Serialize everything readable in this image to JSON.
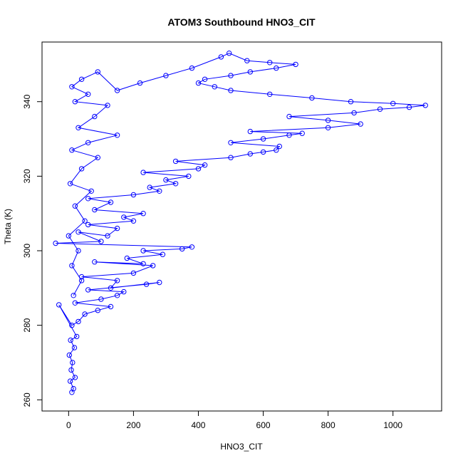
{
  "chart_data": {
    "type": "scatter",
    "title": "ATOM3 Southbound HNO3_CIT",
    "xlabel": "HNO3_CIT",
    "ylabel": "Theta (K)",
    "xlim": [
      -82,
      1150
    ],
    "ylim": [
      257,
      356
    ],
    "xticks": [
      0,
      200,
      400,
      600,
      800,
      1000
    ],
    "yticks": [
      260,
      280,
      300,
      320,
      340
    ],
    "grid": false,
    "legend": "none",
    "colors": {
      "series": "#0000ff",
      "frame": "#000000"
    },
    "series": [
      {
        "marker": "open-circle",
        "connected": true,
        "points": [
          [
            10,
            262
          ],
          [
            15,
            263
          ],
          [
            5,
            265
          ],
          [
            20,
            266
          ],
          [
            8,
            268
          ],
          [
            12,
            270
          ],
          [
            2,
            272
          ],
          [
            18,
            274
          ],
          [
            6,
            276
          ],
          [
            25,
            277
          ],
          [
            -30,
            285.5
          ],
          [
            10,
            280
          ],
          [
            30,
            281
          ],
          [
            50,
            283
          ],
          [
            90,
            284
          ],
          [
            130,
            285
          ],
          [
            20,
            286
          ],
          [
            100,
            287
          ],
          [
            150,
            288
          ],
          [
            170,
            289
          ],
          [
            60,
            289.5
          ],
          [
            240,
            291
          ],
          [
            280,
            291.5
          ],
          [
            130,
            290
          ],
          [
            150,
            292
          ],
          [
            40,
            293
          ],
          [
            200,
            294
          ],
          [
            260,
            296
          ],
          [
            80,
            297
          ],
          [
            230,
            296.5
          ],
          [
            180,
            298
          ],
          [
            290,
            299
          ],
          [
            230,
            300
          ],
          [
            350,
            300.5
          ],
          [
            380,
            301
          ],
          [
            -40,
            302
          ],
          [
            100,
            302.5
          ],
          [
            30,
            305
          ],
          [
            120,
            304
          ],
          [
            150,
            306
          ],
          [
            60,
            307
          ],
          [
            200,
            308
          ],
          [
            170,
            309
          ],
          [
            230,
            310
          ],
          [
            80,
            311
          ],
          [
            130,
            313
          ],
          [
            60,
            314
          ],
          [
            200,
            315
          ],
          [
            280,
            316
          ],
          [
            250,
            317
          ],
          [
            330,
            318
          ],
          [
            300,
            319
          ],
          [
            370,
            320
          ],
          [
            230,
            321
          ],
          [
            400,
            322
          ],
          [
            420,
            323
          ],
          [
            330,
            324
          ],
          [
            500,
            325
          ],
          [
            560,
            326
          ],
          [
            600,
            326.5
          ],
          [
            640,
            327
          ],
          [
            650,
            328
          ],
          [
            500,
            329
          ],
          [
            600,
            330
          ],
          [
            680,
            331
          ],
          [
            720,
            331.5
          ],
          [
            560,
            332
          ],
          [
            800,
            333
          ],
          [
            900,
            334
          ],
          [
            800,
            335
          ],
          [
            680,
            336
          ],
          [
            880,
            337
          ],
          [
            960,
            338
          ],
          [
            1050,
            338.5
          ],
          [
            1100,
            339
          ],
          [
            1000,
            339.5
          ],
          [
            870,
            340
          ],
          [
            750,
            341
          ],
          [
            620,
            342
          ],
          [
            500,
            343
          ],
          [
            450,
            344
          ],
          [
            400,
            345
          ],
          [
            420,
            346
          ],
          [
            500,
            347
          ],
          [
            560,
            348
          ],
          [
            640,
            349
          ],
          [
            700,
            350
          ],
          [
            620,
            350.5
          ],
          [
            550,
            351
          ],
          [
            495,
            353
          ],
          [
            470,
            352
          ],
          [
            380,
            349
          ],
          [
            300,
            347
          ],
          [
            220,
            345
          ],
          [
            150,
            343
          ],
          [
            90,
            348
          ],
          [
            40,
            346
          ],
          [
            10,
            344
          ],
          [
            60,
            342
          ],
          [
            20,
            340
          ],
          [
            120,
            339
          ],
          [
            80,
            336
          ],
          [
            30,
            333
          ],
          [
            150,
            331
          ],
          [
            60,
            329
          ],
          [
            10,
            327
          ],
          [
            90,
            325
          ],
          [
            40,
            322
          ],
          [
            5,
            318
          ],
          [
            70,
            316
          ],
          [
            20,
            312
          ],
          [
            50,
            308
          ],
          [
            0,
            304
          ],
          [
            30,
            300
          ],
          [
            10,
            296
          ],
          [
            40,
            292
          ],
          [
            15,
            288
          ]
        ]
      }
    ]
  }
}
